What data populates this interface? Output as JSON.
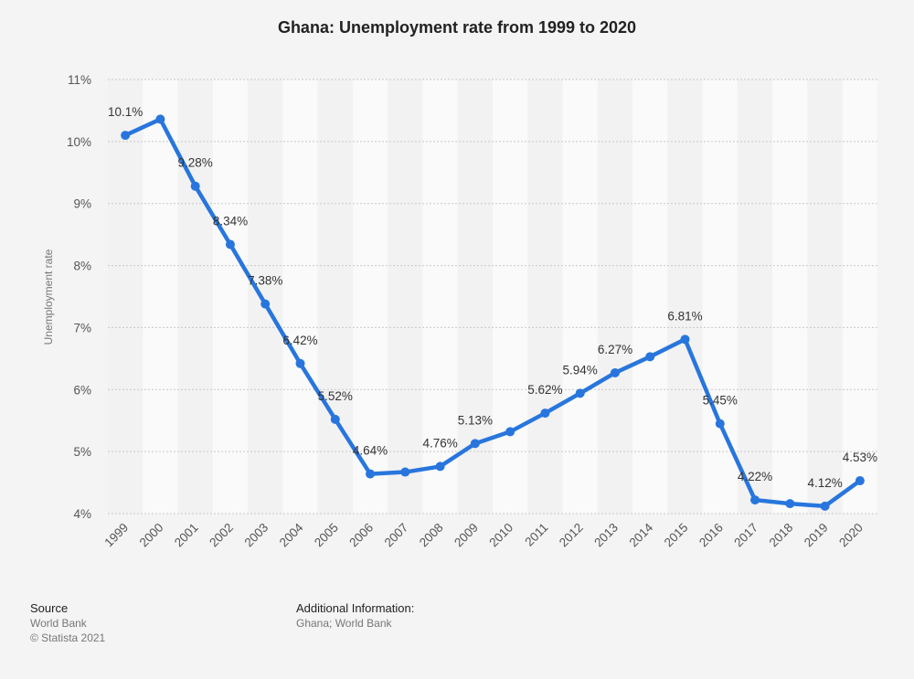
{
  "chart_data": {
    "type": "line",
    "title": "Ghana: Unemployment rate from 1999 to 2020",
    "xlabel": "",
    "ylabel": "Unemployment rate",
    "ylim": [
      4,
      11
    ],
    "yticks": [
      4,
      5,
      6,
      7,
      8,
      9,
      10,
      11
    ],
    "ytick_labels": [
      "4%",
      "5%",
      "6%",
      "7%",
      "8%",
      "9%",
      "10%",
      "11%"
    ],
    "grid": true,
    "categories": [
      "1999",
      "2000",
      "2001",
      "2002",
      "2003",
      "2004",
      "2005",
      "2006",
      "2007",
      "2008",
      "2009",
      "2010",
      "2011",
      "2012",
      "2013",
      "2014",
      "2015",
      "2016",
      "2017",
      "2018",
      "2019",
      "2020"
    ],
    "series": [
      {
        "name": "Unemployment rate",
        "color": "#2876dd",
        "values": [
          10.1,
          10.36,
          9.28,
          8.34,
          7.38,
          6.42,
          5.52,
          4.64,
          4.67,
          4.76,
          5.13,
          5.32,
          5.62,
          5.94,
          6.27,
          6.53,
          6.81,
          5.45,
          4.22,
          4.16,
          4.12,
          4.53
        ],
        "data_labels": [
          "10.1%",
          null,
          "9.28%",
          "8.34%",
          "7.38%",
          "6.42%",
          "5.52%",
          "4.64%",
          null,
          "4.76%",
          "5.13%",
          null,
          "5.62%",
          "5.94%",
          "6.27%",
          null,
          "6.81%",
          "5.45%",
          "4.22%",
          null,
          "4.12%",
          "4.53%"
        ]
      }
    ]
  },
  "footer": {
    "source_heading": "Source",
    "source_name": "World Bank",
    "copyright": "© Statista 2021",
    "additional_heading": "Additional Information:",
    "additional_text": "Ghana; World Bank"
  }
}
